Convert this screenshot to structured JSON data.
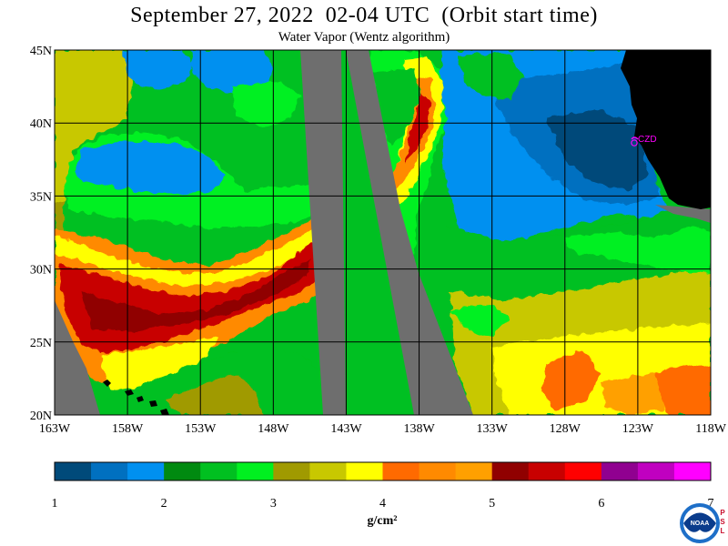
{
  "title": "September 27, 2022  02-04 UTC  (Orbit start time)",
  "subtitle": "Water Vapor (Wentz algorithm)",
  "map": {
    "lat_labels": [
      "45N",
      "40N",
      "35N",
      "30N",
      "25N",
      "20N"
    ],
    "lon_labels": [
      "163W",
      "158W",
      "153W",
      "148W",
      "143W",
      "138W",
      "133W",
      "128W",
      "123W",
      "118W"
    ],
    "lat_range": [
      20,
      45
    ],
    "lon_range": [
      -163,
      -118
    ],
    "grid": true,
    "station_label": "CZD",
    "no_data_color": "#6e6e6e",
    "land_color": "#000000",
    "station_color": "#ff00ff"
  },
  "colorbar": {
    "tick_labels": [
      "1",
      "2",
      "3",
      "4",
      "5",
      "6",
      "7"
    ],
    "range": [
      1,
      7
    ],
    "unit": "g/cm²",
    "colors": [
      "#004a7a",
      "#0070c0",
      "#0090f0",
      "#008a10",
      "#00c020",
      "#00f020",
      "#a09a00",
      "#c8c800",
      "#ffff00",
      "#ff6a00",
      "#ff8a00",
      "#ffa000",
      "#900000",
      "#c80000",
      "#ff0000",
      "#900090",
      "#c000c0",
      "#ff00ff"
    ]
  },
  "logo": {
    "text": "NOAA",
    "side_letters": [
      "P",
      "S",
      "L"
    ],
    "colors": {
      "outer": "#1e6fc8",
      "inner": "#0a3c8c",
      "text": "#ffffff",
      "side": "#c8102e"
    }
  }
}
